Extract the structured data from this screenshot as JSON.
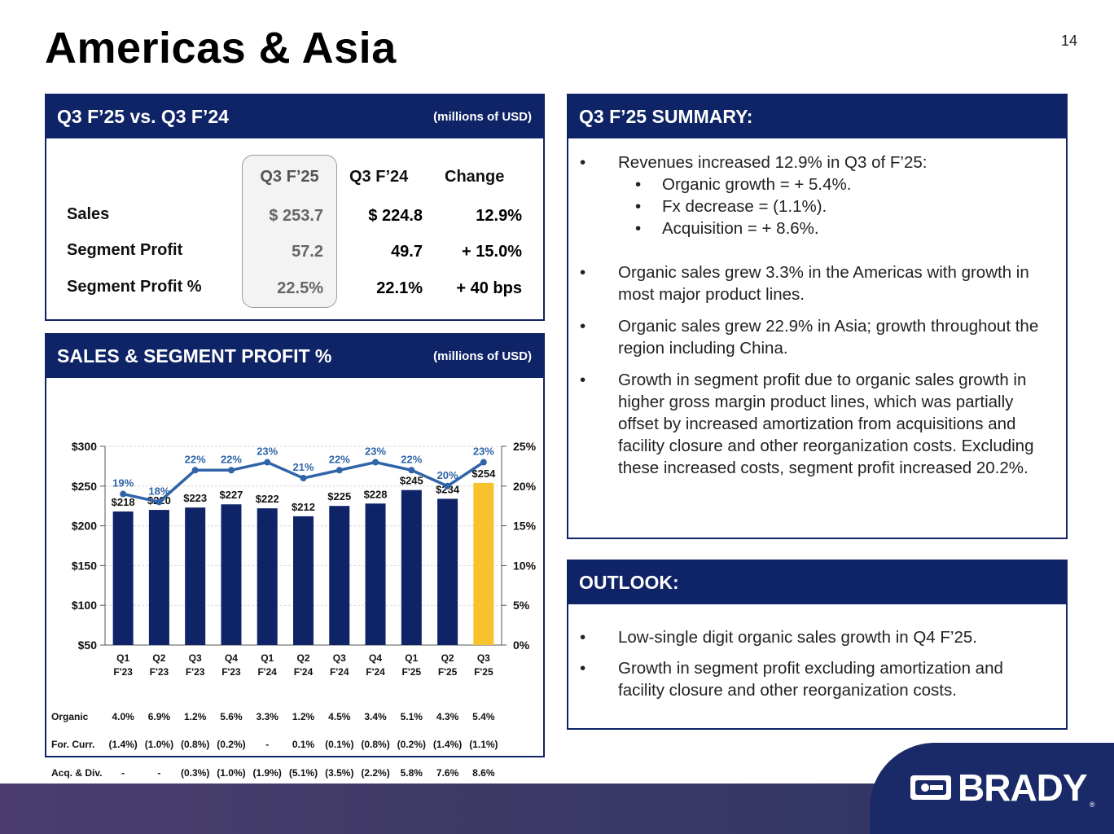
{
  "slide": {
    "title": "Americas & Asia",
    "page_number": "14"
  },
  "compare": {
    "title": "Q3 F’25 vs. Q3 F’24",
    "units": "(millions of USD)",
    "headers": [
      "Q3 F’25",
      "Q3 F’24",
      "Change"
    ],
    "rows": [
      {
        "label": "Sales",
        "cur": "$ 253.7",
        "prev": "$ 224.8",
        "chg": "12.9%"
      },
      {
        "label": "Segment Profit",
        "cur": "57.2",
        "prev": "49.7",
        "chg": "+ 15.0%"
      },
      {
        "label": "Segment Profit %",
        "cur": "22.5%",
        "prev": "22.1%",
        "chg": "+ 40 bps"
      }
    ]
  },
  "sales": {
    "title": "SALES & SEGMENT PROFIT %",
    "units": "(millions of USD)"
  },
  "chart_data": {
    "type": "bar",
    "categories": [
      "Q1 F'23",
      "Q2 F'23",
      "Q3 F'23",
      "Q4 F'23",
      "Q1 F'24",
      "Q2 F'24",
      "Q3 F'24",
      "Q4 F'24",
      "Q1 F'25",
      "Q2 F'25",
      "Q3 F'25"
    ],
    "category_lines": [
      [
        "Q1",
        "F'23"
      ],
      [
        "Q2",
        "F'23"
      ],
      [
        "Q3",
        "F'23"
      ],
      [
        "Q4",
        "F'23"
      ],
      [
        "Q1",
        "F'24"
      ],
      [
        "Q2",
        "F'24"
      ],
      [
        "Q3",
        "F'24"
      ],
      [
        "Q4",
        "F'24"
      ],
      [
        "Q1",
        "F'25"
      ],
      [
        "Q2",
        "F'25"
      ],
      [
        "Q3",
        "F'25"
      ]
    ],
    "series": [
      {
        "name": "Sales",
        "type": "bar",
        "axis": "left",
        "values": [
          218,
          220,
          223,
          227,
          222,
          212,
          225,
          228,
          245,
          234,
          254
        ],
        "labels": [
          "$218",
          "$220",
          "$223",
          "$227",
          "$222",
          "$212",
          "$225",
          "$228",
          "$245",
          "$234",
          "$254"
        ]
      },
      {
        "name": "Segment Profit %",
        "type": "line",
        "axis": "right",
        "values": [
          19,
          18,
          22,
          22,
          23,
          21,
          22,
          23,
          22,
          20,
          23
        ],
        "labels": [
          "19%",
          "18%",
          "22%",
          "22%",
          "23%",
          "21%",
          "22%",
          "23%",
          "22%",
          "20%",
          "23%"
        ]
      }
    ],
    "left_axis": {
      "ylim": [
        50,
        300
      ],
      "ticks": [
        "$50",
        "$100",
        "$150",
        "$200",
        "$250",
        "$300"
      ]
    },
    "right_axis": {
      "ylim": [
        0,
        25
      ],
      "ticks": [
        "0%",
        "5%",
        "10%",
        "15%",
        "20%",
        "25%"
      ]
    },
    "colors": {
      "bar": "#0f2466",
      "highlight_bar": "#f8c22d",
      "line": "#2f64a8",
      "grid": "#d9d9d9"
    },
    "factors": [
      {
        "label": "Organic",
        "values": [
          "4.0%",
          "6.9%",
          "1.2%",
          "5.6%",
          "3.3%",
          "1.2%",
          "4.5%",
          "3.4%",
          "5.1%",
          "4.3%",
          "5.4%"
        ]
      },
      {
        "label": "For. Curr.",
        "values": [
          "(1.4%)",
          "(1.0%)",
          "(0.8%)",
          "(0.2%)",
          "-",
          "0.1%",
          "(0.1%)",
          "(0.8%)",
          "(0.2%)",
          "(1.4%)",
          "(1.1%)"
        ]
      },
      {
        "label": "Acq. & Div.",
        "values": [
          "-",
          "-",
          "(0.3%)",
          "(1.0%)",
          "(1.9%)",
          "(5.1%)",
          "(3.5%)",
          "(2.2%)",
          "5.8%",
          "7.6%",
          "8.6%"
        ]
      }
    ]
  },
  "summary": {
    "title": "Q3 F’25 SUMMARY:",
    "bullet1": "Revenues increased 12.9% in Q3 of F’25:",
    "sub_bullets": [
      "Organic growth = + 5.4%.",
      "Fx decrease = (1.1%).",
      "Acquisition = + 8.6%."
    ],
    "bullet2": "Organic sales grew 3.3% in the Americas with growth in most major product lines.",
    "bullet3": "Organic sales grew 22.9% in Asia; growth throughout the region including China.",
    "bullet4": "Growth in segment profit due to organic sales growth in higher gross margin product lines, which was partially offset by increased amortization from acquisitions and facility closure and other reorganization costs.  Excluding these increased costs, segment profit increased 20.2%."
  },
  "outlook": {
    "title": "OUTLOOK:",
    "bullet1": "Low-single digit organic sales growth in Q4 F’25.",
    "bullet2": "Growth in segment profit excluding amortization and facility closure and other reorganization costs."
  },
  "bullet_char": "•",
  "brand": {
    "name": "BRADY",
    "reg": "®"
  }
}
